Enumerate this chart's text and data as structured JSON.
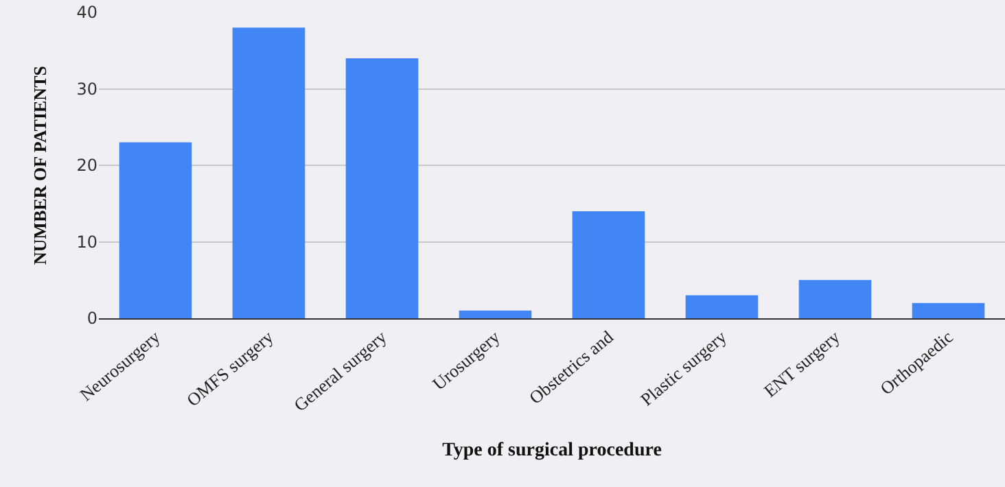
{
  "chart_data": {
    "type": "bar",
    "xlabel": "Type of surgical procedure",
    "ylabel": "NUMBER OF PATIENTS",
    "categories": [
      "Neurosurgery",
      "OMFS surgery",
      "General surgery",
      "Urosurgery",
      "Obstetrics and",
      "Plastic surgery",
      "ENT surgery",
      "Orthopaedic"
    ],
    "values": [
      23,
      38,
      34,
      1,
      14,
      3,
      5,
      2
    ],
    "color": "#4285f4",
    "ylim": [
      0,
      40
    ],
    "yticks": [
      0,
      10,
      20,
      30,
      40
    ],
    "grid": "y"
  }
}
